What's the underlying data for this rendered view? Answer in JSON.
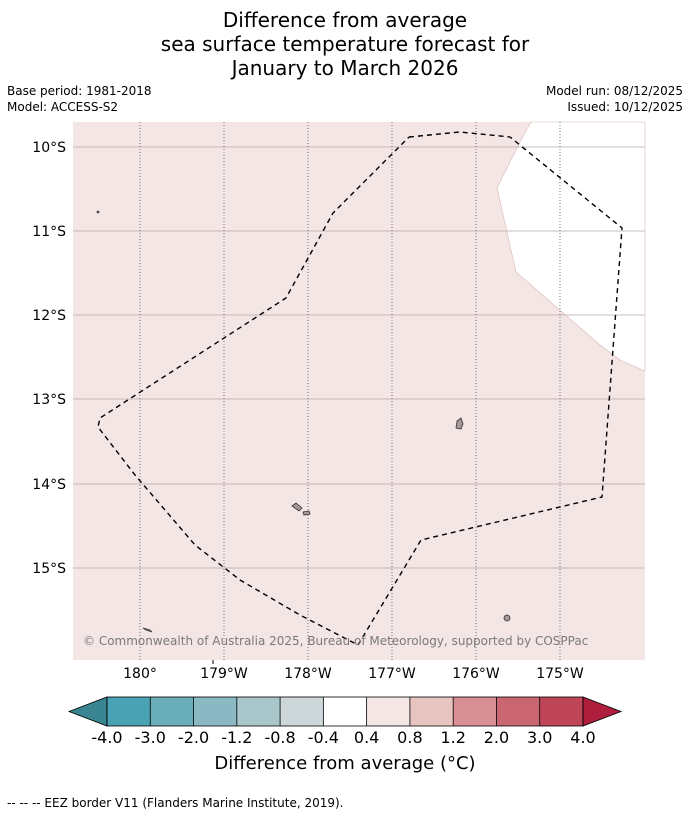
{
  "title_lines": [
    "Difference from average",
    "sea surface temperature forecast for",
    "January to March 2026"
  ],
  "meta_left": [
    "Base period: 1981-2018",
    "Model: ACCESS-S2"
  ],
  "meta_right": [
    "Model run: 08/12/2025",
    "Issued: 10/12/2025"
  ],
  "copyright": "© Commonwealth of Australia 2025, Bureau of Meteorology, supported by COSPPac",
  "map": {
    "lon_ticks": [
      "180°",
      "179°W",
      "178°W",
      "177°W",
      "176°W",
      "175°W"
    ],
    "lat_ticks": [
      "10°S",
      "11°S",
      "12°S",
      "13°S",
      "14°S",
      "15°S"
    ],
    "ocean_color": "#f4e6e4",
    "nodata_color": "#ffffff",
    "land_color": "#a89895"
  },
  "colorbar": {
    "ticks": [
      "-4.0",
      "-3.0",
      "-2.0",
      "-1.2",
      "-0.8",
      "-0.4",
      "0.4",
      "0.8",
      "1.2",
      "2.0",
      "3.0",
      "4.0"
    ],
    "colors": [
      "#49a3b5",
      "#6aaeb9",
      "#8ab9c3",
      "#a9c6ca",
      "#cdd7d9",
      "#ffffff",
      "#f4e6e4",
      "#e8c4c0",
      "#d88e95",
      "#c96671",
      "#bf4658"
    ],
    "low_extend_color": "#3a8592",
    "high_extend_color": "#b01e3e",
    "units_label": "Difference from average (°C)"
  },
  "footnote": "--  --  -- EEZ border V11 (Flanders Marine Institute, 2019)."
}
